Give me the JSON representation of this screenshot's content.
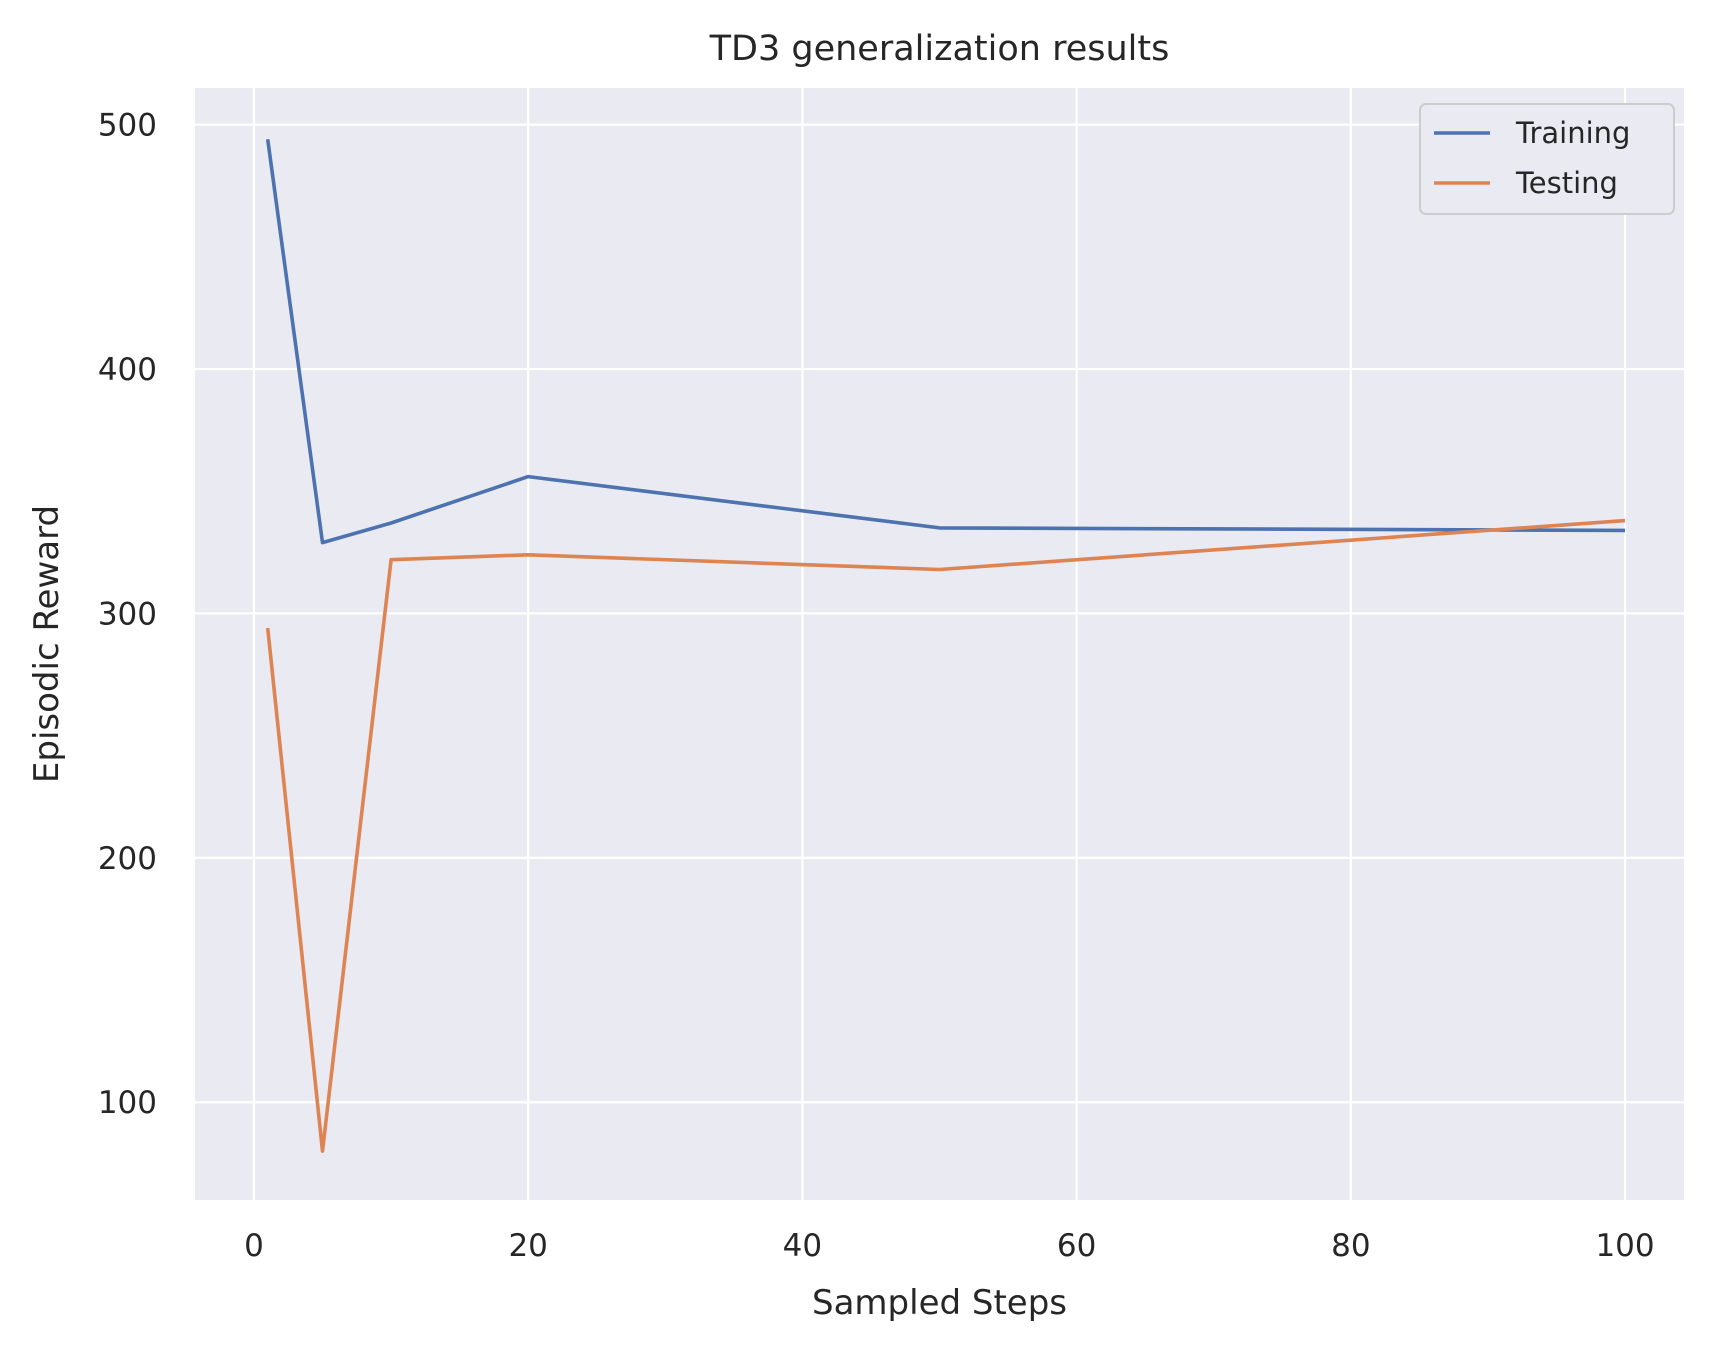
{
  "chart_data": {
    "type": "line",
    "title": "TD3 generalization results",
    "xlabel": "Sampled Steps",
    "ylabel": "Episodic Reward",
    "xlim": [
      -4.3,
      104.3
    ],
    "ylim": [
      60,
      515
    ],
    "xticks": [
      0,
      20,
      40,
      60,
      80,
      100
    ],
    "yticks": [
      100,
      200,
      300,
      400,
      500
    ],
    "grid": true,
    "legend_position": "top-right",
    "background": "#eaeaf2",
    "series": [
      {
        "name": "Training",
        "color": "#4c72b0",
        "x": [
          1,
          5,
          10,
          20,
          50,
          100
        ],
        "y": [
          494,
          329,
          337,
          356,
          335,
          334
        ]
      },
      {
        "name": "Testing",
        "color": "#dd8452",
        "x": [
          1,
          5,
          10,
          20,
          50,
          100
        ],
        "y": [
          294,
          80,
          322,
          324,
          318,
          338
        ]
      }
    ]
  }
}
